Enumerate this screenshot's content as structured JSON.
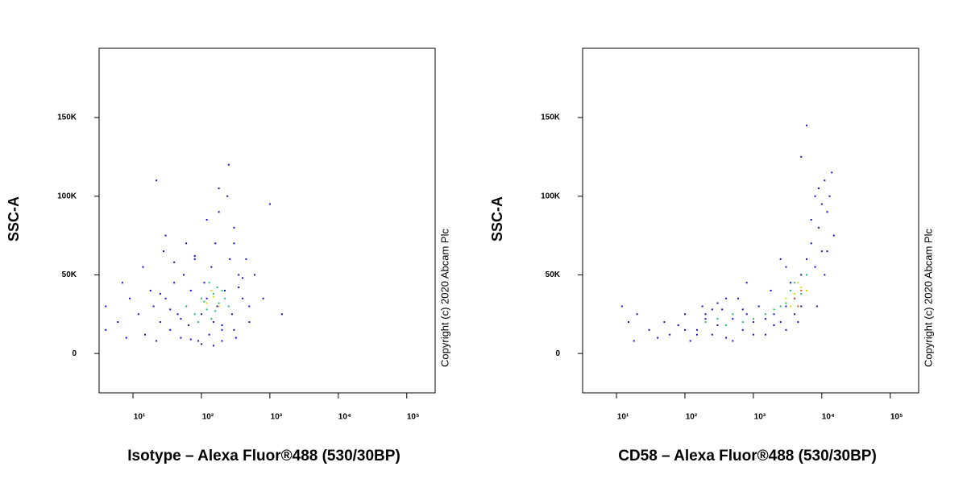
{
  "chart_data": [
    {
      "type": "scatter",
      "x_label": "Isotype – Alexa Fluor®488 (530/30BP)",
      "y_label": "SSC-A",
      "annotation": "Copyright (c) 2020 Abcam Plc",
      "xscale": "log",
      "xlim": [
        3.2,
        260000
      ],
      "ylim": [
        -25000,
        194000
      ],
      "xticks": [
        {
          "value": 10,
          "label": "10¹"
        },
        {
          "value": 100,
          "label": "10²"
        },
        {
          "value": 1000,
          "label": "10³"
        },
        {
          "value": 10000,
          "label": "10⁴"
        },
        {
          "value": 100000,
          "label": "10⁵"
        }
      ],
      "yticks": [
        0,
        {
          "value": 50000,
          "label": "50K"
        },
        {
          "value": 100000,
          "label": "100K"
        },
        {
          "value": 150000,
          "label": "150K"
        }
      ],
      "series": [
        {
          "color": "#1010c8",
          "x": [
            4,
            4,
            6,
            7,
            8,
            9,
            12,
            14,
            15,
            18,
            20,
            22,
            25,
            28,
            30,
            35,
            40,
            45,
            50,
            55,
            60,
            65,
            70,
            80,
            90,
            100,
            110,
            120,
            130,
            140,
            150,
            160,
            170,
            180,
            200,
            220,
            240,
            260,
            280,
            300,
            320,
            350,
            400,
            450,
            500,
            600,
            800,
            1000,
            1500,
            22,
            30,
            40,
            60,
            80,
            120,
            180,
            250,
            300,
            400,
            200,
            150,
            100,
            70,
            50,
            35,
            25,
            300,
            350,
            500,
            200
          ],
          "values": [
            30000,
            15000,
            20000,
            45000,
            10000,
            35000,
            25000,
            55000,
            12000,
            40000,
            30000,
            8000,
            20000,
            65000,
            35000,
            15000,
            45000,
            25000,
            10000,
            50000,
            30000,
            18000,
            40000,
            60000,
            8000,
            25000,
            45000,
            35000,
            12000,
            55000,
            20000,
            70000,
            30000,
            90000,
            15000,
            40000,
            100000,
            60000,
            25000,
            80000,
            10000,
            50000,
            35000,
            60000,
            20000,
            50000,
            35000,
            95000,
            25000,
            110000,
            75000,
            58000,
            70000,
            62000,
            85000,
            105000,
            120000,
            70000,
            48000,
            8000,
            5000,
            6000,
            9000,
            22000,
            28000,
            38000,
            15000,
            42000,
            30000,
            18000
          ]
        },
        {
          "color": "#22c060",
          "x": [
            60,
            80,
            100,
            120,
            150,
            180,
            200,
            250,
            90,
            130,
            160,
            220,
            110,
            140,
            170
          ],
          "values": [
            30000,
            25000,
            35000,
            28000,
            38000,
            32000,
            40000,
            30000,
            20000,
            45000,
            27000,
            35000,
            33000,
            22000,
            42000
          ]
        },
        {
          "color": "#d8d800",
          "x": [
            120,
            150,
            180,
            140
          ],
          "values": [
            32000,
            36000,
            30000,
            40000
          ]
        }
      ]
    },
    {
      "type": "scatter",
      "x_label": "CD58 – Alexa Fluor®488 (530/30BP)",
      "y_label": "SSC-A",
      "annotation": "Copyright (c) 2020 Abcam Plc",
      "xscale": "log",
      "xlim": [
        3.2,
        260000
      ],
      "ylim": [
        -25000,
        194000
      ],
      "xticks": [
        {
          "value": 10,
          "label": "10¹"
        },
        {
          "value": 100,
          "label": "10²"
        },
        {
          "value": 1000,
          "label": "10³"
        },
        {
          "value": 10000,
          "label": "10⁴"
        },
        {
          "value": 100000,
          "label": "10⁵"
        }
      ],
      "yticks": [
        0,
        {
          "value": 50000,
          "label": "50K"
        },
        {
          "value": 100000,
          "label": "100K"
        },
        {
          "value": 150000,
          "label": "150K"
        }
      ],
      "series": [
        {
          "color": "#1010c8",
          "x": [
            12,
            15,
            18,
            20,
            30,
            40,
            50,
            60,
            80,
            100,
            120,
            150,
            180,
            200,
            250,
            300,
            350,
            400,
            500,
            600,
            700,
            800,
            1000,
            1200,
            1500,
            1800,
            2000,
            2500,
            3000,
            3500,
            4000,
            5000,
            6000,
            7000,
            8000,
            9000,
            10000,
            11000,
            12000,
            14000,
            15000,
            10000,
            8000,
            6000,
            5000,
            4000,
            3000,
            2000,
            1500,
            1000,
            700,
            500,
            300,
            200,
            150,
            5000,
            7000,
            9000,
            12000,
            3000,
            13000,
            6000,
            2500,
            800,
            400,
            250,
            100,
            4500,
            8500,
            11000
          ],
          "values": [
            30000,
            20000,
            8000,
            25000,
            15000,
            10000,
            20000,
            12000,
            18000,
            25000,
            8000,
            15000,
            30000,
            22000,
            12000,
            18000,
            28000,
            10000,
            22000,
            35000,
            15000,
            25000,
            20000,
            30000,
            12000,
            40000,
            25000,
            20000,
            30000,
            45000,
            35000,
            50000,
            60000,
            70000,
            55000,
            80000,
            95000,
            110000,
            90000,
            115000,
            75000,
            65000,
            100000,
            40000,
            30000,
            25000,
            15000,
            18000,
            22000,
            12000,
            28000,
            8000,
            32000,
            25000,
            12000,
            125000,
            85000,
            105000,
            65000,
            55000,
            100000,
            145000,
            60000,
            45000,
            35000,
            28000,
            15000,
            20000,
            30000,
            50000
          ]
        },
        {
          "color": "#22c060",
          "x": [
            200,
            300,
            400,
            500,
            700,
            1000,
            1500,
            2000,
            2500,
            3000,
            3500,
            4000,
            5000,
            6000,
            4500
          ],
          "values": [
            20000,
            22000,
            18000,
            25000,
            20000,
            22000,
            25000,
            28000,
            30000,
            32000,
            40000,
            45000,
            38000,
            50000,
            30000
          ]
        },
        {
          "color": "#d8d800",
          "x": [
            3000,
            4000,
            5000,
            3500,
            4500,
            6000
          ],
          "values": [
            35000,
            38000,
            42000,
            30000,
            45000,
            40000
          ]
        },
        {
          "color": "#ee5500",
          "x": [
            4000,
            5000,
            4500
          ],
          "values": [
            35000,
            40000,
            30000
          ]
        }
      ]
    }
  ]
}
